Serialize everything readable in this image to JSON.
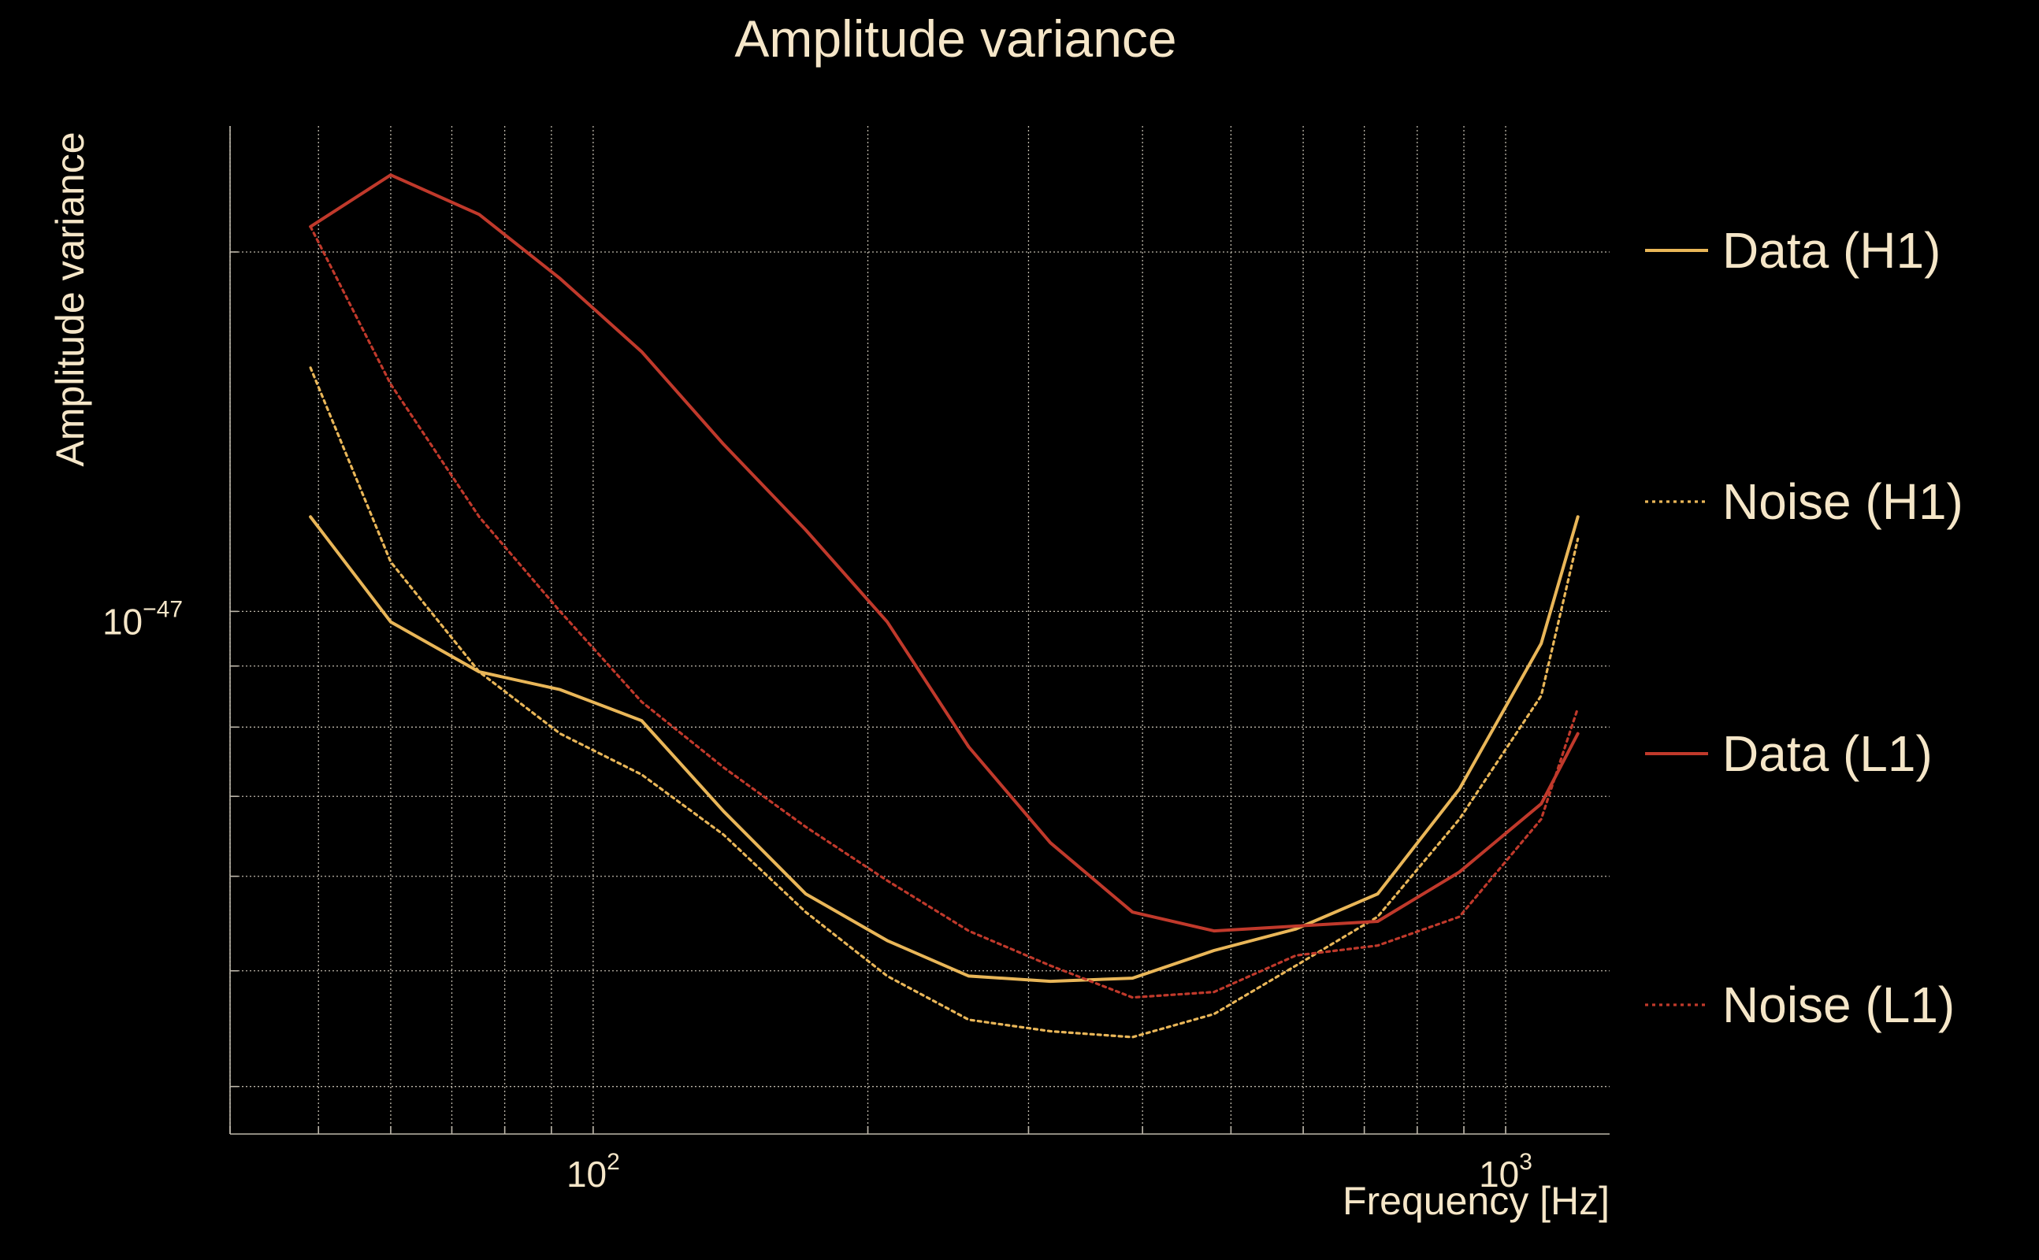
{
  "chart_data": {
    "type": "line",
    "title": "Amplitude variance",
    "xlabel": "Frequency [Hz]",
    "ylabel": "Amplitude variance",
    "x_scale": "log",
    "y_scale": "log",
    "xlim": [
      40,
      1300
    ],
    "ylim": [
      3.65e-48,
      2.55e-47
    ],
    "x_ticks": [
      {
        "value": 100,
        "base": "10",
        "exp": "2"
      },
      {
        "value": 1000,
        "base": "10",
        "exp": "3"
      }
    ],
    "y_ticks": [
      {
        "value": 1e-47,
        "base": "10",
        "exp": "−47"
      }
    ],
    "x_minor_ticks": [
      40,
      50,
      60,
      70,
      80,
      90,
      200,
      300,
      400,
      500,
      600,
      700,
      800,
      900
    ],
    "y_minor_ticks": [
      4e-48,
      5e-48,
      6e-48,
      7e-48,
      8e-48,
      9e-48,
      2e-47
    ],
    "grid": true,
    "legend_position": "right",
    "series": [
      {
        "name": "Data (H1)",
        "color": "#e9b658",
        "style": "solid",
        "x": [
          49,
          60,
          75,
          92,
          113,
          139,
          171,
          210,
          258,
          317,
          390,
          479,
          589,
          724,
          890,
          1094,
          1200
        ],
        "y": [
          1.2e-47,
          9.8e-48,
          8.9e-48,
          8.6e-48,
          8.1e-48,
          6.8e-48,
          5.8e-48,
          5.3e-48,
          4.95e-48,
          4.9e-48,
          4.93e-48,
          5.2e-48,
          5.42e-48,
          5.8e-48,
          7.1e-48,
          9.4e-48,
          1.2e-47
        ]
      },
      {
        "name": "Noise (H1)",
        "color": "#e9b658",
        "style": "dotted",
        "x": [
          49,
          60,
          75,
          92,
          113,
          139,
          171,
          210,
          258,
          317,
          390,
          479,
          589,
          724,
          890,
          1094,
          1200
        ],
        "y": [
          1.6e-47,
          1.1e-47,
          8.9e-48,
          7.9e-48,
          7.3e-48,
          6.5e-48,
          5.6e-48,
          4.95e-48,
          4.55e-48,
          4.45e-48,
          4.4e-48,
          4.6e-48,
          5.05e-48,
          5.55e-48,
          6.7e-48,
          8.5e-48,
          1.15e-47
        ]
      },
      {
        "name": "Data (L1)",
        "color": "#c0392b",
        "style": "solid",
        "x": [
          49,
          60,
          75,
          92,
          113,
          139,
          171,
          210,
          258,
          317,
          390,
          479,
          589,
          724,
          890,
          1094,
          1200
        ],
        "y": [
          2.1e-47,
          2.32e-47,
          2.15e-47,
          1.9e-47,
          1.65e-47,
          1.38e-47,
          1.17e-47,
          9.8e-48,
          7.7e-48,
          6.4e-48,
          5.6e-48,
          5.4e-48,
          5.45e-48,
          5.5e-48,
          6.05e-48,
          6.9e-48,
          7.9e-48
        ]
      },
      {
        "name": "Noise (L1)",
        "color": "#c0392b",
        "style": "dotted",
        "x": [
          49,
          60,
          75,
          92,
          113,
          139,
          171,
          210,
          258,
          317,
          390,
          479,
          589,
          724,
          890,
          1094,
          1200
        ],
        "y": [
          2.1e-47,
          1.55e-47,
          1.2e-47,
          1e-47,
          8.4e-48,
          7.4e-48,
          6.6e-48,
          5.95e-48,
          5.4e-48,
          5.05e-48,
          4.75e-48,
          4.8e-48,
          5.15e-48,
          5.25e-48,
          5.55e-48,
          6.7e-48,
          8.3e-48
        ]
      }
    ]
  }
}
